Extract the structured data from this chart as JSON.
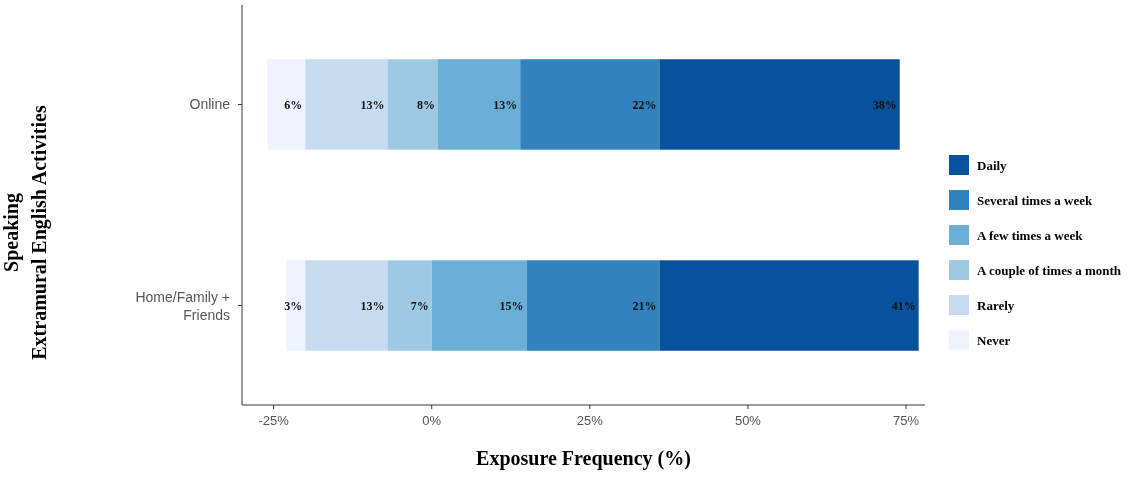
{
  "chart_data": {
    "type": "bar",
    "orientation": "horizontal",
    "xlabel": "Exposure Frequency (%)",
    "ylabel": "Speaking\nExtramural English Activities",
    "categories": [
      "Online",
      "Home/Family + Friends"
    ],
    "xlim": [
      -30,
      78
    ],
    "xticks": [
      {
        "value": -25,
        "label": "-25%"
      },
      {
        "value": 0,
        "label": "0%"
      },
      {
        "value": 25,
        "label": "25%"
      },
      {
        "value": 50,
        "label": "50%"
      },
      {
        "value": 75,
        "label": "75%"
      }
    ],
    "series": [
      {
        "name": "Never",
        "color": "#eff3ff",
        "values": [
          6,
          3
        ],
        "base": [
          -26,
          -23
        ],
        "value_labels": [
          "6%",
          "3%"
        ]
      },
      {
        "name": "Rarely",
        "color": "#c6dbef",
        "values": [
          13,
          13
        ],
        "base": [
          -20,
          -20
        ],
        "value_labels": [
          "13%",
          "13%"
        ]
      },
      {
        "name": "A couple of times a month",
        "color": "#9ecae1",
        "values": [
          8,
          7
        ],
        "base": [
          -7,
          -7
        ],
        "value_labels": [
          "8%",
          "7%"
        ]
      },
      {
        "name": "A few times a week",
        "color": "#6baed6",
        "values": [
          13,
          15
        ],
        "base": [
          1,
          0
        ],
        "value_labels": [
          "13%",
          "15%"
        ]
      },
      {
        "name": "Several times a week",
        "color": "#3182bd",
        "values": [
          22,
          21
        ],
        "base": [
          14,
          15
        ],
        "value_labels": [
          "22%",
          "21%"
        ]
      },
      {
        "name": "Daily",
        "color": "#08519c",
        "values": [
          38,
          41
        ],
        "base": [
          36,
          36
        ],
        "value_labels": [
          "38%",
          "41%"
        ]
      }
    ],
    "legend": "right",
    "grid": false
  }
}
